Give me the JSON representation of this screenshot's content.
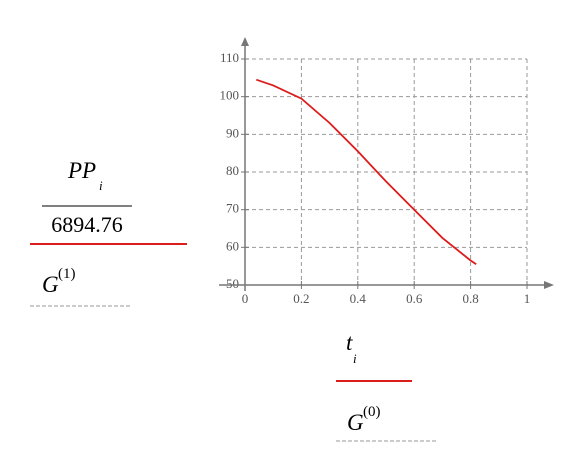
{
  "chart_data": {
    "type": "line",
    "y_label": {
      "text": "PP",
      "subscript": "i",
      "divisor": "6894.76"
    },
    "y_extra_label": {
      "text": "G",
      "superscript": "(1)"
    },
    "x_label": {
      "text": "t",
      "subscript": "i"
    },
    "x_extra_label": {
      "text": "G",
      "superscript": "(0)"
    },
    "x": [
      0.04,
      0.1,
      0.2,
      0.3,
      0.4,
      0.5,
      0.6,
      0.7,
      0.8,
      0.82
    ],
    "values": [
      104.5,
      103,
      99.5,
      93,
      85.5,
      77.5,
      70,
      62.5,
      56.5,
      55.5
    ],
    "color": "#dd1c1c",
    "xlim": [
      0,
      1
    ],
    "ylim": [
      50,
      110
    ],
    "xticks": [
      0,
      0.2,
      0.4,
      0.6,
      0.8,
      1
    ],
    "yticks": [
      50,
      60,
      70,
      80,
      90,
      100,
      110
    ],
    "grid": true
  }
}
